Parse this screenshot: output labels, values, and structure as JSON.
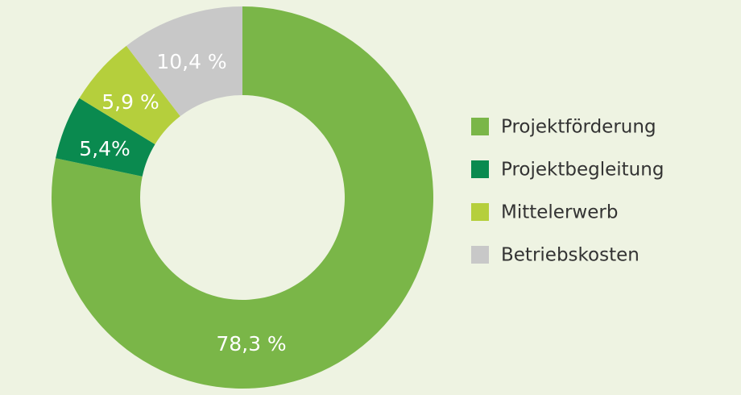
{
  "chart_data": {
    "type": "donut",
    "categories": [
      "Projektförderung",
      "Projektbegleitung",
      "Mittelerwerb",
      "Betriebskosten"
    ],
    "values": [
      78.3,
      5.4,
      5.9,
      10.4
    ],
    "value_labels": [
      "78,3 %",
      "5,4%",
      "5,9 %",
      "10,4 %"
    ],
    "colors": [
      "#7ab648",
      "#0a8a4f",
      "#b5cf3c",
      "#c8c8c8"
    ],
    "legend": "right"
  }
}
